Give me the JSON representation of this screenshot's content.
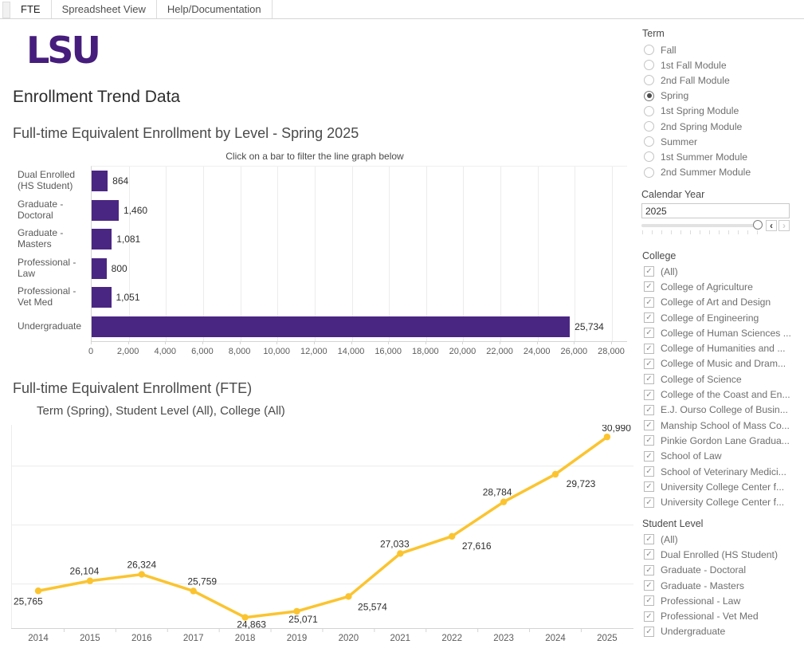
{
  "app": {
    "tabs": [
      {
        "label": "FTE",
        "active": true
      },
      {
        "label": "Spreadsheet View",
        "active": false
      },
      {
        "label": "Help/Documentation",
        "active": false
      }
    ]
  },
  "logo": {
    "text": "LSU"
  },
  "page_title": "Enrollment Trend Data",
  "colors": {
    "lsu_purple": "#461D7C",
    "bar_purple": "#4A2683",
    "line_gold": "#FBC42F",
    "grid": "#ececec",
    "axis": "#d4d4d4"
  },
  "chart_data": [
    {
      "type": "bar",
      "orientation": "horizontal",
      "title": "Full-time Equivalent Enrollment by Level - Spring 2025",
      "subtitle": "Click on a bar to filter the line graph below",
      "categories": [
        "Dual Enrolled (HS Student)",
        "Graduate - Doctoral",
        "Graduate - Masters",
        "Professional - Law",
        "Professional - Vet Med",
        "Undergraduate"
      ],
      "values": [
        864,
        1460,
        1081,
        800,
        1051,
        25734
      ],
      "value_labels": [
        "864",
        "1,460",
        "1,081",
        "800",
        "1,051",
        "25,734"
      ],
      "xlim": [
        0,
        28000
      ],
      "x_ticks": [
        0,
        2000,
        4000,
        6000,
        8000,
        10000,
        12000,
        14000,
        16000,
        18000,
        20000,
        22000,
        24000,
        26000,
        28000
      ],
      "x_tick_labels": [
        "0",
        "2,000",
        "4,000",
        "6,000",
        "8,000",
        "10,000",
        "12,000",
        "14,000",
        "16,000",
        "18,000",
        "20,000",
        "22,000",
        "24,000",
        "26,000",
        "28,000"
      ],
      "grid": true,
      "bar_color": "#4A2683"
    },
    {
      "type": "line",
      "title": "Full-time Equivalent Enrollment (FTE)",
      "subtitle": "Term (Spring), Student Level (All), College (All)",
      "x": [
        2014,
        2015,
        2016,
        2017,
        2018,
        2019,
        2020,
        2021,
        2022,
        2023,
        2024,
        2025
      ],
      "x_labels": [
        "2014",
        "2015",
        "2016",
        "2017",
        "2018",
        "2019",
        "2020",
        "2021",
        "2022",
        "2023",
        "2024",
        "2025"
      ],
      "values": [
        25765,
        26104,
        26324,
        25759,
        24863,
        25071,
        25574,
        27033,
        27616,
        28784,
        29723,
        30990
      ],
      "point_labels": [
        "25,765",
        "26,104",
        "26,324",
        "25,759",
        "24,863",
        "25,071",
        "25,574",
        "27,033",
        "27,616",
        "28,784",
        "29,723",
        "30,990"
      ],
      "ylim": [
        24500,
        31400
      ],
      "y_gridlines": [
        26000,
        28000,
        30000
      ],
      "grid": true,
      "legend": "none",
      "line_color": "#FBC42F"
    }
  ],
  "filters": {
    "term": {
      "label": "Term",
      "selected": "Spring",
      "options": [
        "Fall",
        "1st Fall Module",
        "2nd Fall Module",
        "Spring",
        "1st Spring Module",
        "2nd Spring Module",
        "Summer",
        "1st Summer Module",
        "2nd Summer Module"
      ]
    },
    "calendar_year": {
      "label": "Calendar Year",
      "value": "2025",
      "prev_icon": "‹",
      "next_icon": "›"
    },
    "college": {
      "label": "College",
      "check_glyph": "✓",
      "options": [
        "(All)",
        "College of Agriculture",
        "College of Art and Design",
        "College of Engineering",
        "College of Human Sciences ...",
        "College of Humanities and ...",
        "College of Music and Dram...",
        "College of Science",
        "College of the Coast and En...",
        "E.J. Ourso College of Busin...",
        "Manship School of Mass Co...",
        "Pinkie Gordon Lane Gradua...",
        "School of Law",
        "School of Veterinary Medici...",
        "University College Center f...",
        "University College Center f..."
      ],
      "all_checked": true
    },
    "student_level": {
      "label": "Student Level",
      "check_glyph": "✓",
      "options": [
        "(All)",
        "Dual Enrolled (HS Student)",
        "Graduate - Doctoral",
        "Graduate - Masters",
        "Professional - Law",
        "Professional - Vet Med",
        "Undergraduate"
      ],
      "all_checked": true
    }
  }
}
